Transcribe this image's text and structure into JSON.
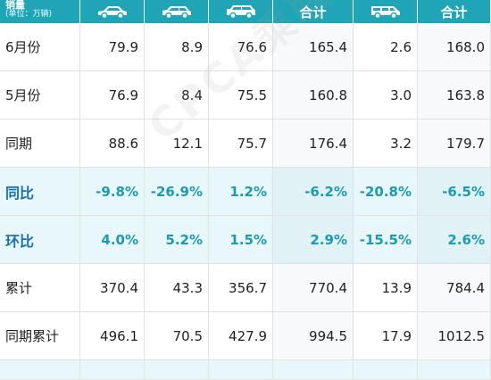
{
  "header": {
    "title": "销量",
    "unit": "(单位：万辆)",
    "columns": [
      {
        "type": "icon",
        "icon": "sedan-car-icon"
      },
      {
        "type": "icon",
        "icon": "mpv-car-icon"
      },
      {
        "type": "icon",
        "icon": "suv-car-icon"
      },
      {
        "type": "text",
        "label": "合计"
      },
      {
        "type": "icon",
        "icon": "minivan-car-icon"
      },
      {
        "type": "text",
        "label": "合计"
      }
    ]
  },
  "rows": [
    {
      "label": "6月份",
      "values": [
        "79.9",
        "8.9",
        "76.6",
        "165.4",
        "2.6",
        "168.0"
      ],
      "style": "normal"
    },
    {
      "label": "5月份",
      "values": [
        "76.9",
        "8.4",
        "75.5",
        "160.8",
        "3.0",
        "163.8"
      ],
      "style": "normal"
    },
    {
      "label": "同期",
      "values": [
        "88.6",
        "12.1",
        "75.7",
        "176.4",
        "3.2",
        "179.7"
      ],
      "style": "normal"
    },
    {
      "label": "同比",
      "values": [
        "-9.8%",
        "-26.9%",
        "1.2%",
        "-6.2%",
        "-20.8%",
        "-6.5%"
      ],
      "style": "pct"
    },
    {
      "label": "环比",
      "values": [
        "4.0%",
        "5.2%",
        "1.5%",
        "2.9%",
        "-15.5%",
        "2.6%"
      ],
      "style": "pct"
    },
    {
      "label": "累计",
      "values": [
        "370.4",
        "43.3",
        "356.7",
        "770.4",
        "13.9",
        "784.4"
      ],
      "style": "normal"
    },
    {
      "label": "同期累计",
      "values": [
        "496.1",
        "70.5",
        "427.9",
        "994.5",
        "17.9",
        "1012.5"
      ],
      "style": "normal"
    }
  ],
  "watermark": "CPCA乘联会",
  "colors": {
    "header_bg": "#1fa5b5",
    "pct_text": "#1a9bb0",
    "pct_bg": "#e8f7fa",
    "pct_label": "#1a6fae"
  }
}
